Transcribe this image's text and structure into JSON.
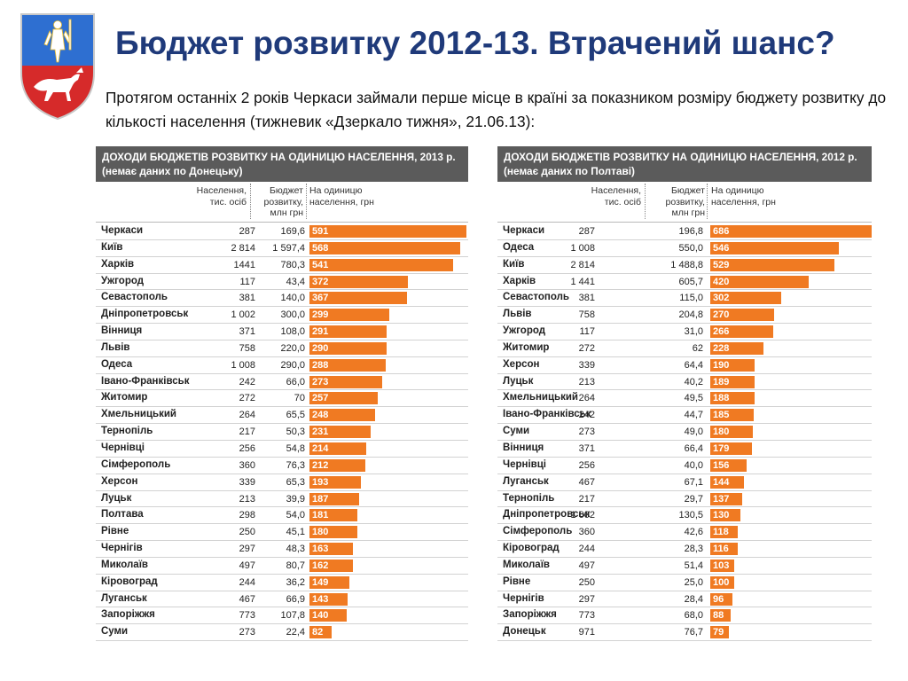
{
  "slide": {
    "title": "Бюджет розвитку 2012-13. Втрачений шанс?",
    "subtitle": "Протягом останніх 2 років Черкаси займали перше місце в країні за показником розміру бюджету розвитку до кількості населення (тижневик «Дзеркало тижня», 21.06.13):"
  },
  "colors": {
    "title": "#1f3a7a",
    "bar": "#f07a22",
    "header_bg": "#5b5b5b",
    "coat_blue": "#2e6fd1",
    "coat_red": "#d62a2a"
  },
  "chart_data": [
    {
      "type": "bar",
      "title": "ДОХОДИ БЮДЖЕТІВ РОЗВИТКУ НА ОДИНИЦЮ НАСЕЛЕННЯ, 2013 р. (немає даних по Донецьку)",
      "column_headers": {
        "population": "Населення, тис. осіб",
        "budget": "Бюджет розвитку, млн грн",
        "per_capita": "На одиницю населення, грн"
      },
      "categories": [
        "Черкаси",
        "Київ",
        "Харків",
        "Ужгород",
        "Севастополь",
        "Дніпропетровськ",
        "Вінниця",
        "Львів",
        "Одеса",
        "Івано-Франківськ",
        "Житомир",
        "Хмельницький",
        "Тернопіль",
        "Чернівці",
        "Сімферополь",
        "Херсон",
        "Луцьк",
        "Полтава",
        "Рівне",
        "Чернігів",
        "Миколаїв",
        "Кіровоград",
        "Луганськ",
        "Запоріжжя",
        "Суми"
      ],
      "population": [
        "287",
        "2 814",
        "1441",
        "117",
        "381",
        "1 002",
        "371",
        "758",
        "1 008",
        "242",
        "272",
        "264",
        "217",
        "256",
        "360",
        "339",
        "213",
        "298",
        "250",
        "297",
        "497",
        "244",
        "467",
        "773",
        "273"
      ],
      "budget": [
        "169,6",
        "1 597,4",
        "780,3",
        "43,4",
        "140,0",
        "300,0",
        "108,0",
        "220,0",
        "290,0",
        "66,0",
        "70",
        "65,5",
        "50,3",
        "54,8",
        "76,3",
        "65,3",
        "39,9",
        "54,0",
        "45,1",
        "48,3",
        "80,7",
        "36,2",
        "66,9",
        "107,8",
        "22,4"
      ],
      "values": [
        591,
        568,
        541,
        372,
        367,
        299,
        291,
        290,
        288,
        273,
        257,
        248,
        231,
        214,
        212,
        193,
        187,
        181,
        180,
        163,
        162,
        149,
        143,
        140,
        82
      ],
      "xlim": [
        0,
        591
      ]
    },
    {
      "type": "bar",
      "title": "ДОХОДИ БЮДЖЕТІВ РОЗВИТКУ НА ОДИНИЦЮ НАСЕЛЕННЯ, 2012 р. (немає даних по Полтаві)",
      "column_headers": {
        "population": "Населення, тис. осіб",
        "budget": "Бюджет розвитку, млн грн",
        "per_capita": "На одиницю населення, грн"
      },
      "categories": [
        "Черкаси",
        "Одеса",
        "Київ",
        "Харків",
        "Севастополь",
        "Львів",
        "Ужгород",
        "Житомир",
        "Херсон",
        "Луцьк",
        "Хмельницький",
        "Івано-Франківськ",
        "Суми",
        "Вінниця",
        "Чернівці",
        "Луганськ",
        "Тернопіль",
        "Дніпропетровськ",
        "Сімферополь",
        "Кіровоград",
        "Миколаїв",
        "Рівне",
        "Чернігів",
        "Запоріжжя",
        "Донецьк"
      ],
      "population": [
        "287",
        "1 008",
        "2 814",
        "1 441",
        "381",
        "758",
        "117",
        "272",
        "339",
        "213",
        "264",
        "242",
        "273",
        "371",
        "256",
        "467",
        "217",
        "1 002",
        "360",
        "244",
        "497",
        "250",
        "297",
        "773",
        "971"
      ],
      "budget": [
        "196,8",
        "550,0",
        "1 488,8",
        "605,7",
        "115,0",
        "204,8",
        "31,0",
        "62",
        "64,4",
        "40,2",
        "49,5",
        "44,7",
        "49,0",
        "66,4",
        "40,0",
        "67,1",
        "29,7",
        "130,5",
        "42,6",
        "28,3",
        "51,4",
        "25,0",
        "28,4",
        "68,0",
        "76,7"
      ],
      "values": [
        686,
        546,
        529,
        420,
        302,
        270,
        266,
        228,
        190,
        189,
        188,
        185,
        180,
        179,
        156,
        144,
        137,
        130,
        118,
        116,
        103,
        100,
        96,
        88,
        79
      ],
      "xlim": [
        0,
        686
      ]
    }
  ]
}
